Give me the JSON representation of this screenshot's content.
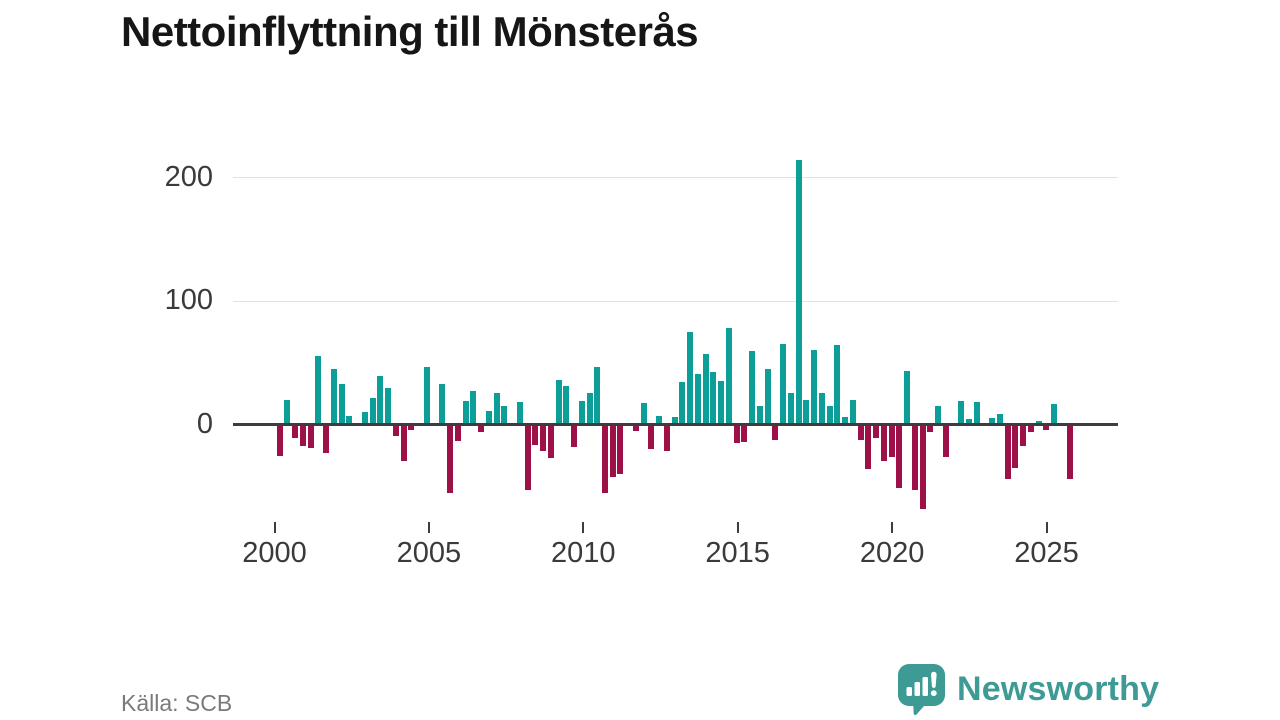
{
  "title": "Nettoinflyttning till Mönsterås",
  "source": "Källa: SCB",
  "logo": {
    "text": "Newsworthy",
    "icon": "newsworthy-speech-bubble-bar-chart-icon"
  },
  "colors": {
    "positive_bar": "#0c9e98",
    "negative_bar": "#9e1048",
    "axis": "#3d3d3d",
    "grid": "#e2e2e2",
    "tick_label": "#3a3a3a",
    "title_text": "#161616",
    "source_text": "#7a7a7a",
    "logo_teal": "#3d9a94"
  },
  "chart_data": {
    "type": "bar",
    "title": "Nettoinflyttning till Mönsterås",
    "xlabel": "",
    "ylabel": "",
    "frequency": "quarterly",
    "first_period": "2000 Q1",
    "last_period": "2025 Q3",
    "yticks": [
      0,
      100,
      200
    ],
    "xticks": [
      2000,
      2005,
      2010,
      2015,
      2020,
      2025
    ],
    "ylim": [
      -75,
      230
    ],
    "grid": true,
    "legend": "none",
    "series": [
      {
        "year": 2000,
        "values": [
          -24,
          19,
          -10,
          -16
        ]
      },
      {
        "year": 2001,
        "values": [
          -18,
          54,
          -22,
          44
        ]
      },
      {
        "year": 2002,
        "values": [
          32,
          6,
          0,
          9
        ]
      },
      {
        "year": 2003,
        "values": [
          20,
          38,
          28,
          -8
        ]
      },
      {
        "year": 2004,
        "values": [
          -28,
          -3,
          0,
          45
        ]
      },
      {
        "year": 2005,
        "values": [
          0,
          32,
          -54,
          -12
        ]
      },
      {
        "year": 2006,
        "values": [
          18,
          26,
          -5,
          10
        ]
      },
      {
        "year": 2007,
        "values": [
          24,
          14,
          0,
          17
        ]
      },
      {
        "year": 2008,
        "values": [
          -52,
          -15,
          -20,
          -26
        ]
      },
      {
        "year": 2009,
        "values": [
          35,
          30,
          -17,
          18
        ]
      },
      {
        "year": 2010,
        "values": [
          24,
          45,
          -54,
          -41
        ]
      },
      {
        "year": 2011,
        "values": [
          -39,
          0,
          -4,
          16
        ]
      },
      {
        "year": 2012,
        "values": [
          -19,
          6,
          -20,
          5
        ]
      },
      {
        "year": 2013,
        "values": [
          33,
          74,
          40,
          56
        ]
      },
      {
        "year": 2014,
        "values": [
          41,
          34,
          77,
          -14
        ]
      },
      {
        "year": 2015,
        "values": [
          -13,
          58,
          14,
          44
        ]
      },
      {
        "year": 2016,
        "values": [
          -11,
          64,
          24,
          213
        ]
      },
      {
        "year": 2017,
        "values": [
          19,
          59,
          24,
          14
        ]
      },
      {
        "year": 2018,
        "values": [
          63,
          5,
          19,
          -11
        ]
      },
      {
        "year": 2019,
        "values": [
          -35,
          -10,
          -28,
          -25
        ]
      },
      {
        "year": 2020,
        "values": [
          -50,
          42,
          -52,
          -67
        ]
      },
      {
        "year": 2021,
        "values": [
          -5,
          14,
          -25,
          0
        ]
      },
      {
        "year": 2022,
        "values": [
          18,
          3,
          17,
          0
        ]
      },
      {
        "year": 2023,
        "values": [
          4,
          7,
          -43,
          -34
        ]
      },
      {
        "year": 2024,
        "values": [
          -16,
          -5,
          2,
          -3
        ]
      },
      {
        "year": 2025,
        "values": [
          15,
          0,
          -43
        ]
      }
    ]
  }
}
